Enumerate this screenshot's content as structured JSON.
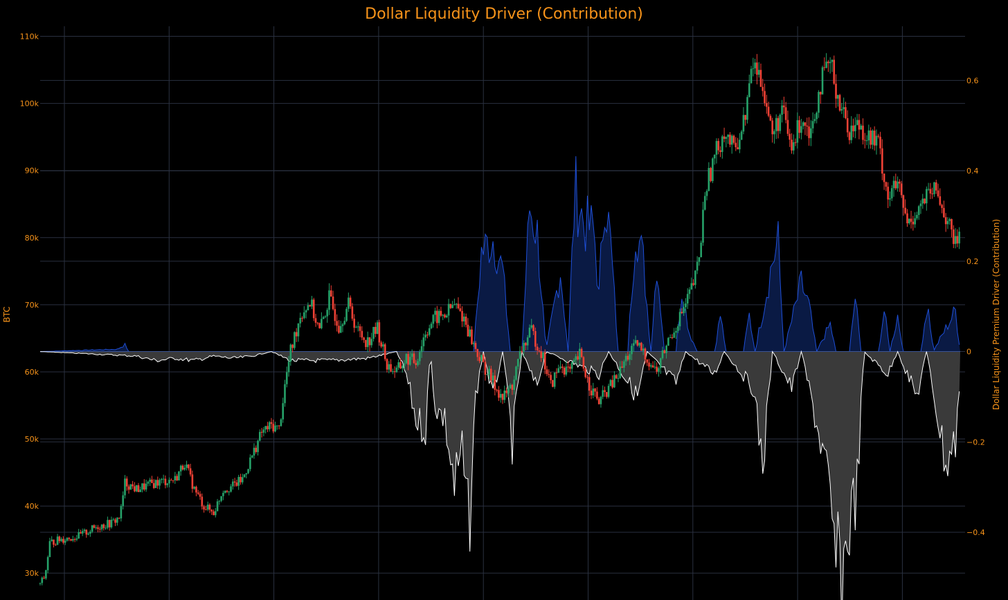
{
  "chart_data": {
    "type": "candlestick + area",
    "title": "Dollar Liquidity Driver (Contribution)",
    "y_left_label": "BTC",
    "y_right_label": "Dollar Liquidity Premium Driver (Contribution)",
    "y_left_ticks": [
      "30k",
      "40k",
      "50k",
      "60k",
      "70k",
      "80k",
      "90k",
      "100k",
      "110k"
    ],
    "y_left_tick_values": [
      30000,
      40000,
      50000,
      60000,
      70000,
      80000,
      90000,
      100000,
      110000
    ],
    "y_left_range": [
      26000,
      111500
    ],
    "y_right_ticks": [
      "0.6",
      "0.4",
      "0.2",
      "0",
      "−0.2",
      "−0.4"
    ],
    "y_right_tick_values": [
      0.6,
      0.4,
      0.2,
      0,
      -0.2,
      -0.4
    ],
    "y_right_range": [
      -0.55,
      0.72
    ],
    "x_ticks_labeled": false,
    "vertical_gridlines": 9,
    "grid": true,
    "colors": {
      "up": "#26a269",
      "down": "#ef4135",
      "positive_fill": "#0a1a44",
      "positive_line": "#1e4fd8",
      "negative_fill": "#3a3a3a",
      "negative_line": "#ffffff",
      "grid": "#2a3140",
      "text": "#f7931a"
    },
    "btc_anchors": [
      [
        0,
        28500
      ],
      [
        5,
        29500
      ],
      [
        10,
        34500
      ],
      [
        20,
        35000
      ],
      [
        40,
        35500
      ],
      [
        60,
        37000
      ],
      [
        75,
        37500
      ],
      [
        83,
        38500
      ],
      [
        88,
        43500
      ],
      [
        100,
        42500
      ],
      [
        120,
        43500
      ],
      [
        140,
        44000
      ],
      [
        150,
        46500
      ],
      [
        160,
        42500
      ],
      [
        170,
        40000
      ],
      [
        180,
        39000
      ],
      [
        190,
        42500
      ],
      [
        200,
        43000
      ],
      [
        210,
        44000
      ],
      [
        220,
        47500
      ],
      [
        230,
        51000
      ],
      [
        240,
        52000
      ],
      [
        248,
        51500
      ],
      [
        255,
        59000
      ],
      [
        260,
        63000
      ],
      [
        270,
        68500
      ],
      [
        280,
        70500
      ],
      [
        290,
        66000
      ],
      [
        300,
        71000
      ],
      [
        310,
        67000
      ],
      [
        320,
        70000
      ],
      [
        330,
        66000
      ],
      [
        340,
        64500
      ],
      [
        350,
        66500
      ],
      [
        360,
        61000
      ],
      [
        370,
        60000
      ],
      [
        380,
        62000
      ],
      [
        390,
        61500
      ],
      [
        400,
        66000
      ],
      [
        410,
        68000
      ],
      [
        420,
        68500
      ],
      [
        430,
        70000
      ],
      [
        440,
        68000
      ],
      [
        450,
        64000
      ],
      [
        460,
        61000
      ],
      [
        470,
        58500
      ],
      [
        480,
        56000
      ],
      [
        490,
        58000
      ],
      [
        500,
        63500
      ],
      [
        510,
        66000
      ],
      [
        520,
        63000
      ],
      [
        530,
        58000
      ],
      [
        540,
        61000
      ],
      [
        550,
        60000
      ],
      [
        560,
        62500
      ],
      [
        570,
        58000
      ],
      [
        580,
        55500
      ],
      [
        590,
        57500
      ],
      [
        600,
        59500
      ],
      [
        610,
        62500
      ],
      [
        620,
        64000
      ],
      [
        630,
        62000
      ],
      [
        640,
        60000
      ],
      [
        650,
        64000
      ],
      [
        660,
        67000
      ],
      [
        670,
        70000
      ],
      [
        680,
        74000
      ],
      [
        685,
        78000
      ],
      [
        690,
        87000
      ],
      [
        700,
        92000
      ],
      [
        710,
        96000
      ],
      [
        720,
        93000
      ],
      [
        730,
        97000
      ],
      [
        740,
        106000
      ],
      [
        750,
        103000
      ],
      [
        760,
        95000
      ],
      [
        770,
        99000
      ],
      [
        780,
        93000
      ],
      [
        790,
        98000
      ],
      [
        800,
        96000
      ],
      [
        810,
        103000
      ],
      [
        820,
        106000
      ],
      [
        830,
        100000
      ],
      [
        840,
        96000
      ],
      [
        850,
        97000
      ],
      [
        860,
        95000
      ],
      [
        870,
        94000
      ],
      [
        880,
        86000
      ],
      [
        890,
        88000
      ],
      [
        900,
        82000
      ],
      [
        910,
        84000
      ],
      [
        920,
        86000
      ],
      [
        930,
        87000
      ],
      [
        940,
        83000
      ],
      [
        950,
        79000
      ],
      [
        955,
        81000
      ]
    ],
    "liquidity_positive": [
      [
        0,
        0
      ],
      [
        80,
        0.005
      ],
      [
        88,
        0.015
      ],
      [
        92,
        0
      ],
      [
        450,
        0
      ],
      [
        458,
        0.22
      ],
      [
        470,
        0.25
      ],
      [
        480,
        0.18
      ],
      [
        488,
        0
      ],
      [
        500,
        0
      ],
      [
        508,
        0.32
      ],
      [
        516,
        0.26
      ],
      [
        525,
        0
      ],
      [
        540,
        0.18
      ],
      [
        548,
        0
      ],
      [
        555,
        0.36
      ],
      [
        565,
        0.28
      ],
      [
        575,
        0.27
      ],
      [
        580,
        0.12
      ],
      [
        586,
        0.36
      ],
      [
        592,
        0.24
      ],
      [
        600,
        0
      ],
      [
        610,
        0
      ],
      [
        618,
        0.28
      ],
      [
        626,
        0.2
      ],
      [
        634,
        0
      ],
      [
        640,
        0.2
      ],
      [
        648,
        0
      ],
      [
        660,
        0
      ],
      [
        666,
        0.14
      ],
      [
        674,
        0.04
      ],
      [
        682,
        0
      ],
      [
        700,
        0
      ],
      [
        706,
        0.08
      ],
      [
        712,
        0
      ],
      [
        730,
        0
      ],
      [
        736,
        0.08
      ],
      [
        742,
        0
      ],
      [
        760,
        0.2
      ],
      [
        766,
        0.24
      ],
      [
        772,
        0
      ],
      [
        790,
        0.15
      ],
      [
        798,
        0.1
      ],
      [
        806,
        0
      ],
      [
        820,
        0.06
      ],
      [
        826,
        0
      ],
      [
        840,
        0
      ],
      [
        846,
        0.12
      ],
      [
        852,
        0
      ],
      [
        870,
        0
      ],
      [
        876,
        0.09
      ],
      [
        882,
        0
      ],
      [
        890,
        0.08
      ],
      [
        896,
        0
      ],
      [
        915,
        0
      ],
      [
        921,
        0.12
      ],
      [
        927,
        0
      ],
      [
        950,
        0.09
      ],
      [
        955,
        0
      ]
    ],
    "liquidity_negative": [
      [
        0,
        0
      ],
      [
        100,
        -0.01
      ],
      [
        120,
        -0.02
      ],
      [
        140,
        -0.015
      ],
      [
        160,
        -0.02
      ],
      [
        180,
        -0.01
      ],
      [
        200,
        -0.015
      ],
      [
        220,
        -0.01
      ],
      [
        240,
        0
      ],
      [
        260,
        -0.02
      ],
      [
        300,
        -0.02
      ],
      [
        340,
        -0.015
      ],
      [
        370,
        0
      ],
      [
        380,
        -0.05
      ],
      [
        390,
        -0.15
      ],
      [
        400,
        -0.17
      ],
      [
        405,
        0
      ],
      [
        410,
        -0.12
      ],
      [
        420,
        -0.15
      ],
      [
        430,
        -0.3
      ],
      [
        438,
        -0.22
      ],
      [
        445,
        -0.4
      ],
      [
        452,
        -0.1
      ],
      [
        460,
        0
      ],
      [
        470,
        -0.1
      ],
      [
        480,
        0
      ],
      [
        490,
        -0.2
      ],
      [
        500,
        0
      ],
      [
        515,
        -0.08
      ],
      [
        525,
        0
      ],
      [
        580,
        -0.05
      ],
      [
        590,
        0
      ],
      [
        620,
        -0.1
      ],
      [
        630,
        0
      ],
      [
        660,
        -0.07
      ],
      [
        670,
        0
      ],
      [
        700,
        -0.05
      ],
      [
        710,
        0
      ],
      [
        740,
        -0.08
      ],
      [
        750,
        -0.25
      ],
      [
        760,
        0
      ],
      [
        780,
        -0.08
      ],
      [
        790,
        0
      ],
      [
        815,
        -0.25
      ],
      [
        825,
        -0.45
      ],
      [
        832,
        -0.5
      ],
      [
        840,
        -0.38
      ],
      [
        848,
        -0.3
      ],
      [
        855,
        0
      ],
      [
        880,
        -0.05
      ],
      [
        890,
        0
      ],
      [
        910,
        -0.1
      ],
      [
        920,
        0
      ],
      [
        940,
        -0.25
      ],
      [
        950,
        -0.2
      ],
      [
        955,
        -0.05
      ]
    ]
  }
}
